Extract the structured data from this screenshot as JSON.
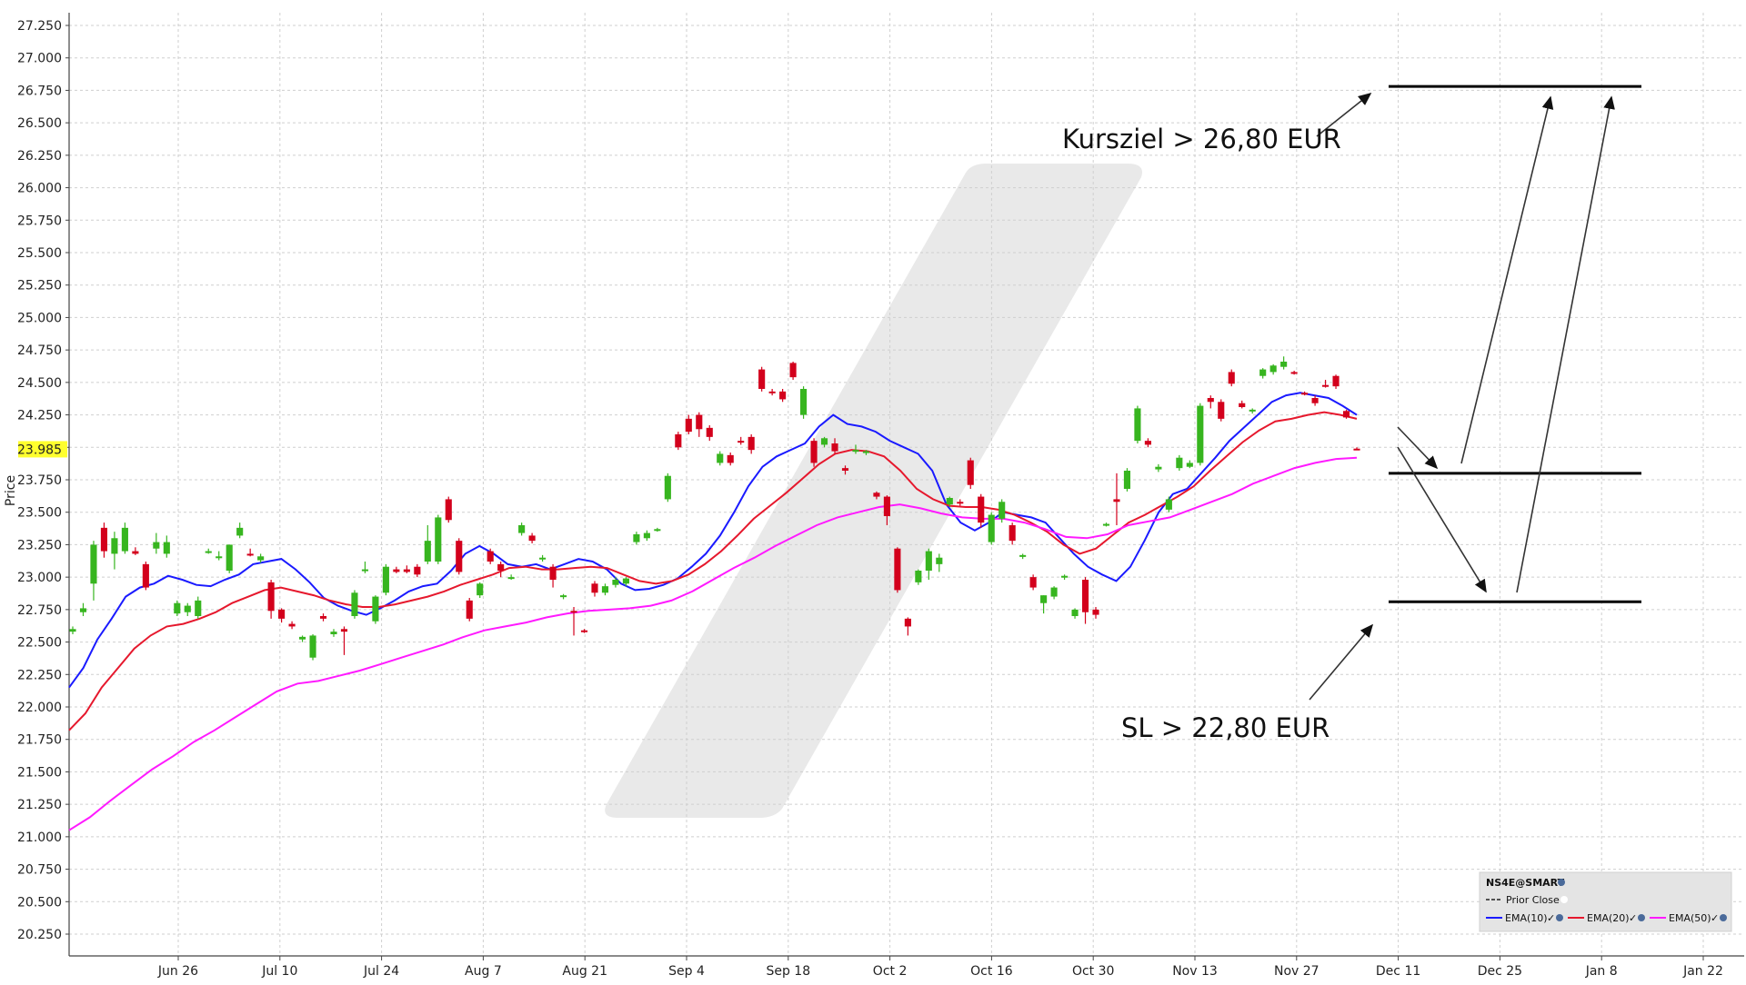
{
  "chart_data": {
    "type": "candlestick",
    "ylabel": "Price",
    "ylim": [
      20.1,
      27.35
    ],
    "y_ticks": [
      "27.250",
      "27.000",
      "26.750",
      "26.500",
      "26.250",
      "26.000",
      "25.750",
      "25.500",
      "25.250",
      "25.000",
      "24.750",
      "24.500",
      "24.250",
      "24.000",
      "23.750",
      "23.500",
      "23.250",
      "23.000",
      "22.750",
      "22.500",
      "22.250",
      "22.000",
      "21.750",
      "21.500",
      "21.250",
      "21.000",
      "20.750",
      "20.500",
      "20.250"
    ],
    "x_ticks": [
      "Jun 26",
      "Jul 10",
      "Jul 24",
      "Aug 7",
      "Aug 21",
      "Sep 4",
      "Sep 18",
      "Oct 2",
      "Oct 16",
      "Oct 30",
      "Nov 13",
      "Nov 27",
      "Dec 11",
      "Dec 25",
      "Jan 8",
      "Jan 22"
    ],
    "last_price": {
      "value": 23.985,
      "label": "23.985"
    },
    "candles": [
      {
        "o": 22.58,
        "h": 22.62,
        "l": 22.56,
        "c": 22.6
      },
      {
        "o": 22.73,
        "h": 22.8,
        "l": 22.7,
        "c": 22.76
      },
      {
        "o": 22.95,
        "h": 23.28,
        "l": 22.82,
        "c": 23.25
      },
      {
        "o": 23.38,
        "h": 23.42,
        "l": 23.15,
        "c": 23.2
      },
      {
        "o": 23.18,
        "h": 23.35,
        "l": 23.06,
        "c": 23.3
      },
      {
        "o": 23.2,
        "h": 23.42,
        "l": 23.18,
        "c": 23.38
      },
      {
        "o": 23.2,
        "h": 23.23,
        "l": 23.17,
        "c": 23.18
      },
      {
        "o": 23.1,
        "h": 23.12,
        "l": 22.9,
        "c": 22.92
      },
      {
        "o": 23.22,
        "h": 23.34,
        "l": 23.18,
        "c": 23.27
      },
      {
        "o": 23.18,
        "h": 23.32,
        "l": 23.15,
        "c": 23.27
      },
      {
        "o": 22.72,
        "h": 22.82,
        "l": 22.7,
        "c": 22.8
      },
      {
        "o": 22.73,
        "h": 22.8,
        "l": 22.7,
        "c": 22.78
      },
      {
        "o": 22.7,
        "h": 22.85,
        "l": 22.68,
        "c": 22.82
      },
      {
        "o": 23.2,
        "h": 23.22,
        "l": 23.18,
        "c": 23.2
      },
      {
        "o": 23.15,
        "h": 23.2,
        "l": 23.13,
        "c": 23.16
      },
      {
        "o": 23.05,
        "h": 23.25,
        "l": 23.03,
        "c": 23.25
      },
      {
        "o": 23.32,
        "h": 23.42,
        "l": 23.3,
        "c": 23.38
      },
      {
        "o": 23.18,
        "h": 23.22,
        "l": 23.16,
        "c": 23.17
      },
      {
        "o": 23.13,
        "h": 23.18,
        "l": 23.11,
        "c": 23.16
      },
      {
        "o": 22.96,
        "h": 22.98,
        "l": 22.68,
        "c": 22.74
      },
      {
        "o": 22.75,
        "h": 22.76,
        "l": 22.65,
        "c": 22.68
      },
      {
        "o": 22.64,
        "h": 22.66,
        "l": 22.6,
        "c": 22.62
      },
      {
        "o": 22.52,
        "h": 22.55,
        "l": 22.5,
        "c": 22.54
      },
      {
        "o": 22.38,
        "h": 22.56,
        "l": 22.36,
        "c": 22.55
      },
      {
        "o": 22.7,
        "h": 22.72,
        "l": 22.66,
        "c": 22.68
      },
      {
        "o": 22.56,
        "h": 22.6,
        "l": 22.54,
        "c": 22.58
      },
      {
        "o": 22.6,
        "h": 22.62,
        "l": 22.4,
        "c": 22.58
      },
      {
        "o": 22.7,
        "h": 22.9,
        "l": 22.68,
        "c": 22.88
      },
      {
        "o": 23.05,
        "h": 23.12,
        "l": 23.03,
        "c": 23.06
      },
      {
        "o": 22.66,
        "h": 22.86,
        "l": 22.64,
        "c": 22.85
      },
      {
        "o": 22.88,
        "h": 23.1,
        "l": 22.86,
        "c": 23.08
      },
      {
        "o": 23.06,
        "h": 23.08,
        "l": 23.03,
        "c": 23.04
      },
      {
        "o": 23.06,
        "h": 23.09,
        "l": 23.03,
        "c": 23.04
      },
      {
        "o": 23.08,
        "h": 23.1,
        "l": 23.0,
        "c": 23.02
      },
      {
        "o": 23.12,
        "h": 23.4,
        "l": 23.1,
        "c": 23.28
      },
      {
        "o": 23.12,
        "h": 23.48,
        "l": 23.1,
        "c": 23.46
      },
      {
        "o": 23.6,
        "h": 23.62,
        "l": 23.42,
        "c": 23.44
      },
      {
        "o": 23.28,
        "h": 23.3,
        "l": 23.02,
        "c": 23.04
      },
      {
        "o": 22.82,
        "h": 22.84,
        "l": 22.66,
        "c": 22.68
      },
      {
        "o": 22.86,
        "h": 22.96,
        "l": 22.84,
        "c": 22.95
      },
      {
        "o": 23.2,
        "h": 23.22,
        "l": 23.1,
        "c": 23.12
      },
      {
        "o": 23.1,
        "h": 23.12,
        "l": 23.0,
        "c": 23.05
      },
      {
        "o": 23.0,
        "h": 23.02,
        "l": 22.98,
        "c": 23.0
      },
      {
        "o": 23.34,
        "h": 23.42,
        "l": 23.32,
        "c": 23.4
      },
      {
        "o": 23.32,
        "h": 23.34,
        "l": 23.26,
        "c": 23.28
      },
      {
        "o": 23.14,
        "h": 23.17,
        "l": 23.12,
        "c": 23.15
      },
      {
        "o": 23.08,
        "h": 23.1,
        "l": 22.92,
        "c": 22.98
      },
      {
        "o": 22.85,
        "h": 22.87,
        "l": 22.83,
        "c": 22.86
      },
      {
        "o": 22.74,
        "h": 22.77,
        "l": 22.55,
        "c": 22.73
      },
      {
        "o": 22.59,
        "h": 22.6,
        "l": 22.57,
        "c": 22.58
      },
      {
        "o": 22.95,
        "h": 22.97,
        "l": 22.85,
        "c": 22.88
      },
      {
        "o": 22.88,
        "h": 22.95,
        "l": 22.86,
        "c": 22.93
      },
      {
        "o": 22.94,
        "h": 23.0,
        "l": 22.92,
        "c": 22.98
      },
      {
        "o": 22.95,
        "h": 23.0,
        "l": 22.93,
        "c": 22.99
      },
      {
        "o": 23.27,
        "h": 23.35,
        "l": 23.25,
        "c": 23.33
      },
      {
        "o": 23.3,
        "h": 23.36,
        "l": 23.28,
        "c": 23.34
      },
      {
        "o": 23.36,
        "h": 23.38,
        "l": 23.35,
        "c": 23.37
      },
      {
        "o": 23.6,
        "h": 23.8,
        "l": 23.58,
        "c": 23.78
      },
      {
        "o": 24.1,
        "h": 24.12,
        "l": 23.98,
        "c": 24.0
      },
      {
        "o": 24.22,
        "h": 24.25,
        "l": 24.1,
        "c": 24.12
      },
      {
        "o": 24.25,
        "h": 24.27,
        "l": 24.08,
        "c": 24.14
      },
      {
        "o": 24.15,
        "h": 24.17,
        "l": 24.05,
        "c": 24.08
      },
      {
        "o": 23.88,
        "h": 23.97,
        "l": 23.86,
        "c": 23.95
      },
      {
        "o": 23.94,
        "h": 23.96,
        "l": 23.86,
        "c": 23.88
      },
      {
        "o": 24.05,
        "h": 24.08,
        "l": 24.02,
        "c": 24.04
      },
      {
        "o": 24.08,
        "h": 24.1,
        "l": 23.95,
        "c": 23.98
      },
      {
        "o": 24.6,
        "h": 24.62,
        "l": 24.43,
        "c": 24.45
      },
      {
        "o": 24.43,
        "h": 24.45,
        "l": 24.4,
        "c": 24.42
      },
      {
        "o": 24.43,
        "h": 24.45,
        "l": 24.35,
        "c": 24.37
      },
      {
        "o": 24.65,
        "h": 24.66,
        "l": 24.52,
        "c": 24.54
      },
      {
        "o": 24.25,
        "h": 24.47,
        "l": 24.22,
        "c": 24.45
      },
      {
        "o": 24.05,
        "h": 24.07,
        "l": 23.85,
        "c": 23.88
      },
      {
        "o": 24.02,
        "h": 24.08,
        "l": 24.0,
        "c": 24.07
      },
      {
        "o": 24.03,
        "h": 24.07,
        "l": 23.95,
        "c": 23.97
      },
      {
        "o": 23.84,
        "h": 23.86,
        "l": 23.79,
        "c": 23.82
      },
      {
        "o": 23.97,
        "h": 24.02,
        "l": 23.95,
        "c": 23.98
      },
      {
        "o": 23.96,
        "h": 23.98,
        "l": 23.94,
        "c": 23.97
      },
      {
        "o": 23.65,
        "h": 23.66,
        "l": 23.6,
        "c": 23.62
      },
      {
        "o": 23.62,
        "h": 23.63,
        "l": 23.4,
        "c": 23.47
      },
      {
        "o": 23.22,
        "h": 23.23,
        "l": 22.88,
        "c": 22.9
      },
      {
        "o": 22.68,
        "h": 22.69,
        "l": 22.55,
        "c": 22.62
      },
      {
        "o": 22.96,
        "h": 23.06,
        "l": 22.94,
        "c": 23.05
      },
      {
        "o": 23.05,
        "h": 23.22,
        "l": 22.98,
        "c": 23.2
      },
      {
        "o": 23.1,
        "h": 23.18,
        "l": 23.04,
        "c": 23.15
      },
      {
        "o": 23.56,
        "h": 23.62,
        "l": 23.54,
        "c": 23.61
      },
      {
        "o": 23.58,
        "h": 23.6,
        "l": 23.55,
        "c": 23.57
      },
      {
        "o": 23.9,
        "h": 23.92,
        "l": 23.68,
        "c": 23.71
      },
      {
        "o": 23.62,
        "h": 23.64,
        "l": 23.38,
        "c": 23.42
      },
      {
        "o": 23.27,
        "h": 23.5,
        "l": 23.25,
        "c": 23.48
      },
      {
        "o": 23.45,
        "h": 23.6,
        "l": 23.42,
        "c": 23.58
      },
      {
        "o": 23.4,
        "h": 23.42,
        "l": 23.25,
        "c": 23.28
      },
      {
        "o": 23.16,
        "h": 23.18,
        "l": 23.14,
        "c": 23.17
      },
      {
        "o": 23.0,
        "h": 23.02,
        "l": 22.9,
        "c": 22.92
      },
      {
        "o": 22.8,
        "h": 22.86,
        "l": 22.72,
        "c": 22.86
      },
      {
        "o": 22.85,
        "h": 22.93,
        "l": 22.83,
        "c": 22.92
      },
      {
        "o": 23.0,
        "h": 23.02,
        "l": 22.98,
        "c": 23.01
      },
      {
        "o": 22.7,
        "h": 22.76,
        "l": 22.68,
        "c": 22.75
      },
      {
        "o": 22.98,
        "h": 23.0,
        "l": 22.64,
        "c": 22.73
      },
      {
        "o": 22.75,
        "h": 22.77,
        "l": 22.68,
        "c": 22.71
      },
      {
        "o": 23.4,
        "h": 23.42,
        "l": 23.39,
        "c": 23.41
      },
      {
        "o": 23.6,
        "h": 23.8,
        "l": 23.4,
        "c": 23.58
      },
      {
        "o": 23.68,
        "h": 23.84,
        "l": 23.66,
        "c": 23.82
      },
      {
        "o": 24.05,
        "h": 24.32,
        "l": 24.03,
        "c": 24.3
      },
      {
        "o": 24.05,
        "h": 24.07,
        "l": 24.0,
        "c": 24.02
      },
      {
        "o": 23.83,
        "h": 23.87,
        "l": 23.81,
        "c": 23.85
      },
      {
        "o": 23.52,
        "h": 23.62,
        "l": 23.5,
        "c": 23.6
      },
      {
        "o": 23.84,
        "h": 23.94,
        "l": 23.82,
        "c": 23.92
      },
      {
        "o": 23.85,
        "h": 23.9,
        "l": 23.84,
        "c": 23.88
      },
      {
        "o": 23.88,
        "h": 24.34,
        "l": 23.86,
        "c": 24.32
      },
      {
        "o": 24.38,
        "h": 24.4,
        "l": 24.3,
        "c": 24.35
      },
      {
        "o": 24.35,
        "h": 24.37,
        "l": 24.2,
        "c": 24.22
      },
      {
        "o": 24.58,
        "h": 24.6,
        "l": 24.47,
        "c": 24.49
      },
      {
        "o": 24.34,
        "h": 24.36,
        "l": 24.3,
        "c": 24.31
      },
      {
        "o": 24.28,
        "h": 24.3,
        "l": 24.26,
        "c": 24.29
      },
      {
        "o": 24.55,
        "h": 24.61,
        "l": 24.53,
        "c": 24.6
      },
      {
        "o": 24.58,
        "h": 24.64,
        "l": 24.56,
        "c": 24.63
      },
      {
        "o": 24.62,
        "h": 24.7,
        "l": 24.6,
        "c": 24.66
      },
      {
        "o": 24.58,
        "h": 24.59,
        "l": 24.56,
        "c": 24.57
      },
      {
        "o": 24.42,
        "h": 24.43,
        "l": 24.4,
        "c": 24.41
      },
      {
        "o": 24.38,
        "h": 24.4,
        "l": 24.32,
        "c": 24.34
      },
      {
        "o": 24.48,
        "h": 24.52,
        "l": 24.46,
        "c": 24.47
      },
      {
        "o": 24.55,
        "h": 24.56,
        "l": 24.45,
        "c": 24.47
      },
      {
        "o": 24.28,
        "h": 24.29,
        "l": 24.22,
        "c": 24.23
      },
      {
        "o": 23.99,
        "h": 24.0,
        "l": 23.98,
        "c": 23.985
      }
    ],
    "series": [
      {
        "name": "EMA(10)",
        "color": "#1a1aff",
        "values": [
          22.15,
          22.3,
          22.52,
          22.68,
          22.85,
          22.92,
          22.95,
          23.01,
          22.98,
          22.94,
          22.93,
          22.98,
          23.02,
          23.1,
          23.12,
          23.14,
          23.06,
          22.96,
          22.84,
          22.78,
          22.74,
          22.71,
          22.76,
          22.82,
          22.89,
          22.93,
          22.95,
          23.05,
          23.18,
          23.24,
          23.18,
          23.1,
          23.08,
          23.1,
          23.06,
          23.1,
          23.14,
          23.12,
          23.06,
          22.95,
          22.9,
          22.91,
          22.94,
          22.99,
          23.08,
          23.18,
          23.32,
          23.5,
          23.7,
          23.85,
          23.93,
          23.98,
          24.03,
          24.16,
          24.25,
          24.18,
          24.16,
          24.12,
          24.05,
          24.0,
          23.95,
          23.82,
          23.56,
          23.42,
          23.36,
          23.42,
          23.5,
          23.48,
          23.46,
          23.42,
          23.3,
          23.18,
          23.08,
          23.02,
          22.97,
          23.08,
          23.28,
          23.5,
          23.64,
          23.68,
          23.8,
          23.92,
          24.05,
          24.15,
          24.25,
          24.35,
          24.4,
          24.42,
          24.4,
          24.38,
          24.32,
          24.25
        ]
      },
      {
        "name": "EMA(20)",
        "color": "#e6182d",
        "values": [
          21.82,
          21.95,
          22.15,
          22.3,
          22.45,
          22.55,
          22.62,
          22.64,
          22.68,
          22.73,
          22.8,
          22.85,
          22.9,
          22.92,
          22.89,
          22.86,
          22.82,
          22.79,
          22.77,
          22.77,
          22.79,
          22.82,
          22.85,
          22.89,
          22.94,
          22.98,
          23.02,
          23.07,
          23.08,
          23.06,
          23.06,
          23.07,
          23.08,
          23.07,
          23.02,
          22.97,
          22.95,
          22.97,
          23.02,
          23.1,
          23.2,
          23.32,
          23.45,
          23.55,
          23.65,
          23.76,
          23.87,
          23.95,
          23.98,
          23.97,
          23.93,
          23.82,
          23.68,
          23.6,
          23.55,
          23.54,
          23.54,
          23.52,
          23.48,
          23.42,
          23.35,
          23.25,
          23.18,
          23.22,
          23.32,
          23.42,
          23.48,
          23.55,
          23.62,
          23.7,
          23.82,
          23.93,
          24.04,
          24.13,
          24.2,
          24.22,
          24.25,
          24.27,
          24.25,
          24.22
        ]
      },
      {
        "name": "EMA(50)",
        "color": "#ff1aff",
        "values": [
          21.05,
          21.15,
          21.28,
          21.4,
          21.52,
          21.62,
          21.73,
          21.82,
          21.92,
          22.02,
          22.12,
          22.18,
          22.2,
          22.24,
          22.28,
          22.33,
          22.38,
          22.43,
          22.48,
          22.54,
          22.59,
          22.62,
          22.65,
          22.69,
          22.72,
          22.74,
          22.75,
          22.76,
          22.78,
          22.82,
          22.89,
          22.98,
          23.07,
          23.15,
          23.24,
          23.32,
          23.4,
          23.46,
          23.5,
          23.54,
          23.56,
          23.53,
          23.49,
          23.46,
          23.45,
          23.45,
          23.42,
          23.37,
          23.31,
          23.3,
          23.33,
          23.4,
          23.43,
          23.46,
          23.52,
          23.58,
          23.64,
          23.72,
          23.78,
          23.84,
          23.88,
          23.91,
          23.92
        ]
      }
    ],
    "annotations": {
      "target_label": "Kursziel > 26,80 EUR",
      "stop_label": "SL > 22,80 EUR",
      "levels": [
        {
          "name": "target",
          "value": 26.78
        },
        {
          "name": "entry",
          "value": 23.8
        },
        {
          "name": "stop",
          "value": 22.81
        }
      ]
    },
    "legend": {
      "title": "NS4E@SMART",
      "prior_close": "Prior Close",
      "items": [
        "EMA(10)",
        "EMA(20)",
        "EMA(50)"
      ],
      "placement": "bottom-right"
    },
    "colors": {
      "up": "#37b51f",
      "down": "#d3001c",
      "grid": "#cfcfcf",
      "price_highlight": "#ffff2e"
    }
  }
}
